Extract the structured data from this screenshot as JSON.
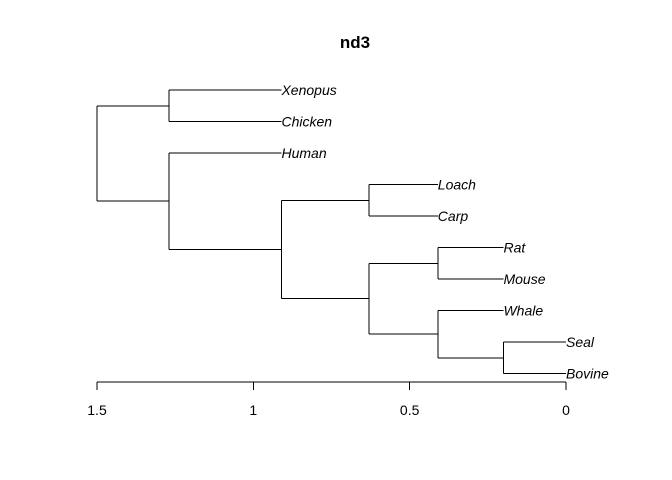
{
  "title": "nd3",
  "axis": {
    "ticks": [
      {
        "value": 1.5,
        "label": "1.5"
      },
      {
        "value": 1.0,
        "label": "1"
      },
      {
        "value": 0.5,
        "label": "0.5"
      },
      {
        "value": 0.0,
        "label": "0"
      }
    ],
    "range": [
      1.5,
      0
    ],
    "reversed": true
  },
  "tree": {
    "height": 1.5,
    "children": [
      {
        "height": 1.27,
        "children": [
          {
            "leaf": "Xenopus"
          },
          {
            "leaf": "Chicken"
          }
        ]
      },
      {
        "height": 1.27,
        "children": [
          {
            "leaf": "Human"
          },
          {
            "height": 0.91,
            "children": [
              {
                "height": 0.63,
                "children": [
                  {
                    "leaf": "Loach"
                  },
                  {
                    "leaf": "Carp"
                  }
                ]
              },
              {
                "height": 0.63,
                "children": [
                  {
                    "height": 0.41,
                    "children": [
                      {
                        "leaf": "Rat"
                      },
                      {
                        "leaf": "Mouse"
                      }
                    ]
                  },
                  {
                    "height": 0.41,
                    "children": [
                      {
                        "leaf": "Whale"
                      },
                      {
                        "height": 0.2,
                        "children": [
                          {
                            "leaf": "Seal"
                          },
                          {
                            "leaf": "Bovine"
                          }
                        ]
                      }
                    ]
                  }
                ]
              }
            ]
          }
        ]
      }
    ]
  },
  "leaf_heights": {
    "Xenopus": 0.91,
    "Chicken": 0.91,
    "Human": 0.91,
    "Loach": 0.41,
    "Carp": 0.41,
    "Rat": 0.2,
    "Mouse": 0.2,
    "Whale": 0.2,
    "Seal": 0.0,
    "Bovine": 0.0
  }
}
